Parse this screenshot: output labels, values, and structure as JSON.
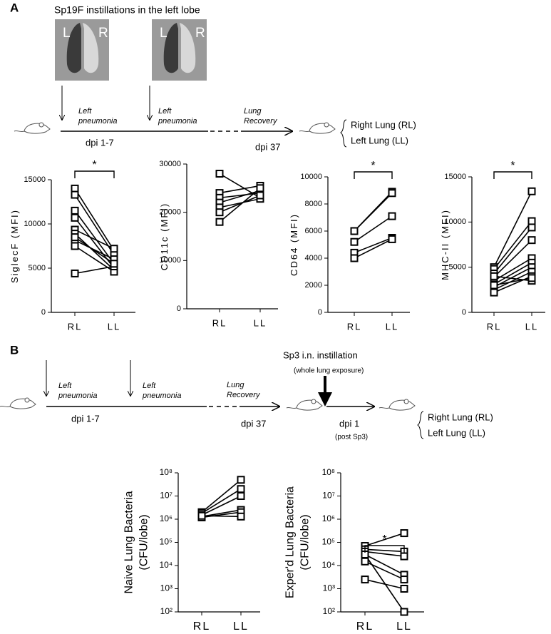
{
  "diagram": {
    "panel_a": {
      "label": "A",
      "title": "Sp19F instillations in the left lobe",
      "images": [
        {
          "left": "L",
          "right": "R"
        },
        {
          "left": "L",
          "right": "R"
        }
      ],
      "events": [
        "Left\npneumonia",
        "Left\npneumonia",
        "Lung\nRecovery"
      ],
      "time_start": "dpi 1-7",
      "time_end": "dpi 37",
      "outcomes": [
        "Right Lung (RL)",
        "Left Lung (LL)"
      ]
    },
    "panel_b": {
      "label": "B",
      "events": [
        "Left\npneumonia",
        "Left\npneumonia",
        "Lung\nRecovery"
      ],
      "time_start": "dpi 1-7",
      "time_end": "dpi 37",
      "challenge": "Sp3 i.n. instillation",
      "challenge_note": "(whole lung exposure)",
      "challenge_time": "dpi 1",
      "challenge_time_note": "(post Sp3)",
      "outcomes": [
        "Right Lung (RL)",
        "Left Lung (LL)"
      ]
    }
  },
  "chart_data": [
    {
      "type": "line",
      "y_label": "SiglecF (MFI)",
      "categories": [
        "RL",
        "LL"
      ],
      "ylim": [
        0,
        15000
      ],
      "yticks": [
        0,
        5000,
        10000,
        15000
      ],
      "annotation": "*",
      "color": "#000000",
      "series": [
        {
          "values": [
            14000,
            7000
          ]
        },
        {
          "values": [
            13300,
            6500
          ]
        },
        {
          "values": [
            11500,
            5500
          ]
        },
        {
          "values": [
            10700,
            5000
          ]
        },
        {
          "values": [
            9350,
            7200
          ]
        },
        {
          "values": [
            8900,
            4800
          ]
        },
        {
          "values": [
            8150,
            6000
          ]
        },
        {
          "values": [
            7500,
            4600
          ]
        },
        {
          "values": [
            4400,
            5200
          ]
        },
        {
          "values": [
            8500,
            5500
          ]
        }
      ]
    },
    {
      "type": "line",
      "y_label": "CD11c (MFI)",
      "categories": [
        "RL",
        "LL"
      ],
      "ylim": [
        0,
        30000
      ],
      "yticks": [
        0,
        10000,
        20000,
        30000
      ],
      "color": "#000000",
      "series": [
        {
          "values": [
            28000,
            23000
          ]
        },
        {
          "values": [
            24000,
            25500
          ]
        },
        {
          "values": [
            23000,
            24000
          ]
        },
        {
          "values": [
            22000,
            24500
          ]
        },
        {
          "values": [
            21000,
            22800
          ]
        },
        {
          "values": [
            20000,
            23500
          ]
        },
        {
          "values": [
            18000,
            25000
          ]
        }
      ]
    },
    {
      "type": "line",
      "y_label": "CD64 (MFI)",
      "categories": [
        "RL",
        "LL"
      ],
      "ylim": [
        0,
        10000
      ],
      "yticks": [
        0,
        2000,
        4000,
        6000,
        8000,
        10000
      ],
      "annotation": "*",
      "color": "#000000",
      "series": [
        {
          "values": [
            6000,
            8900
          ]
        },
        {
          "values": [
            6000,
            8800
          ]
        },
        {
          "values": [
            5200,
            7100
          ]
        },
        {
          "values": [
            4400,
            5500
          ]
        },
        {
          "values": [
            4000,
            5400
          ]
        }
      ]
    },
    {
      "type": "line",
      "y_label": "MHC-II (MFI)",
      "categories": [
        "RL",
        "LL"
      ],
      "ylim": [
        0,
        15000
      ],
      "yticks": [
        0,
        5000,
        10000,
        15000
      ],
      "annotation": "*",
      "color": "#000000",
      "series": [
        {
          "values": [
            5000,
            13400
          ]
        },
        {
          "values": [
            4800,
            10100
          ]
        },
        {
          "values": [
            4300,
            9400
          ]
        },
        {
          "values": [
            3900,
            8000
          ]
        },
        {
          "values": [
            3500,
            6000
          ]
        },
        {
          "values": [
            3100,
            5500
          ]
        },
        {
          "values": [
            2800,
            5000
          ]
        },
        {
          "values": [
            2500,
            4500
          ]
        },
        {
          "values": [
            2200,
            4000
          ]
        },
        {
          "values": [
            4000,
            3500
          ]
        },
        {
          "values": [
            3000,
            3800
          ]
        }
      ]
    },
    {
      "type": "line",
      "y_label": "Naive Lung Bacteria\n(CFU/lobe)",
      "categories": [
        "RL",
        "LL"
      ],
      "log_scale": true,
      "ylim": [
        100,
        100000000
      ],
      "yticks": [
        {
          "value": 100,
          "label": "10²"
        },
        {
          "value": 1000,
          "label": "10³"
        },
        {
          "value": 10000,
          "label": "10⁴"
        },
        {
          "value": 100000,
          "label": "10⁵"
        },
        {
          "value": 1000000,
          "label": "10⁶"
        },
        {
          "value": 10000000,
          "label": "10⁷"
        },
        {
          "value": 100000000,
          "label": "10⁸"
        }
      ],
      "color": "#000000",
      "series": [
        {
          "values": [
            2000000,
            50000000
          ]
        },
        {
          "values": [
            1800000,
            20000000
          ]
        },
        {
          "values": [
            1500000,
            10000000
          ]
        },
        {
          "values": [
            1300000,
            2500000
          ]
        },
        {
          "values": [
            1200000,
            2000000
          ]
        },
        {
          "values": [
            1400000,
            1300000
          ]
        }
      ]
    },
    {
      "type": "line",
      "y_label": "Exper'd Lung Bacteria\n(CFU/lobe)",
      "categories": [
        "RL",
        "LL"
      ],
      "log_scale": true,
      "ylim": [
        100,
        100000000
      ],
      "yticks": [
        {
          "value": 100,
          "label": "10²"
        },
        {
          "value": 1000,
          "label": "10³"
        },
        {
          "value": 10000,
          "label": "10⁴"
        },
        {
          "value": 100000,
          "label": "10⁵"
        },
        {
          "value": 1000000,
          "label": "10⁶"
        },
        {
          "value": 10000000,
          "label": "10⁷"
        },
        {
          "value": 100000000,
          "label": "10⁸"
        }
      ],
      "annotation": "*",
      "color": "#000000",
      "series": [
        {
          "values": [
            70000,
            250000
          ]
        },
        {
          "values": [
            50000,
            40000
          ]
        },
        {
          "values": [
            40000,
            25000
          ]
        },
        {
          "values": [
            30000,
            4000
          ]
        },
        {
          "values": [
            15000,
            2500
          ]
        },
        {
          "values": [
            2500,
            1000
          ]
        },
        {
          "values": [
            30000,
            100
          ]
        }
      ]
    }
  ]
}
